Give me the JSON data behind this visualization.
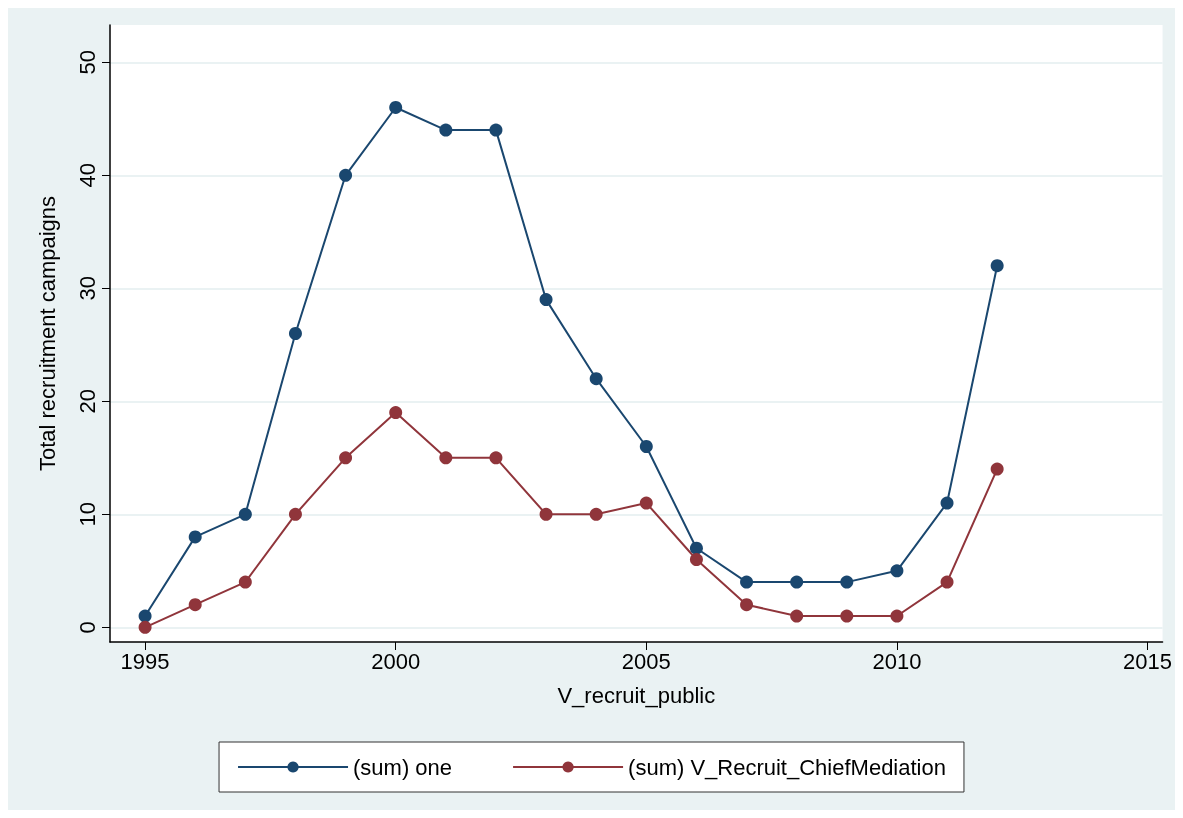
{
  "chart_data": {
    "type": "line",
    "xlabel": "V_recruit_public",
    "ylabel": "Total recruitment campaigns",
    "x": [
      1995,
      1996,
      1997,
      1998,
      1999,
      2000,
      2001,
      2002,
      2003,
      2004,
      2005,
      2006,
      2007,
      2008,
      2009,
      2010,
      2011,
      2012
    ],
    "series": [
      {
        "name": "(sum) one",
        "color": "#1a476f",
        "values": [
          1,
          8,
          10,
          26,
          40,
          46,
          44,
          44,
          29,
          22,
          16,
          7,
          4,
          4,
          4,
          5,
          11,
          32
        ]
      },
      {
        "name": "(sum) V_Recruit_ChiefMediation",
        "color": "#90353b",
        "values": [
          0,
          2,
          4,
          10,
          15,
          19,
          15,
          15,
          10,
          10,
          11,
          6,
          2,
          1,
          1,
          1,
          4,
          14
        ]
      }
    ],
    "xlim": [
      1994.3,
      2015.3
    ],
    "xticks": [
      1995,
      2000,
      2005,
      2010,
      2015
    ],
    "ylim": [
      -1.3,
      53.3
    ],
    "yticks": [
      0,
      10,
      20,
      30,
      40,
      50
    ],
    "grid": "y",
    "legend": "bottom",
    "marker": "circle",
    "line_style": "solid"
  }
}
